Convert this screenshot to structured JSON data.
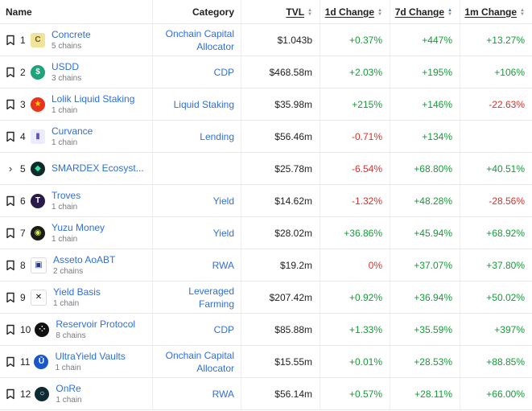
{
  "header": {
    "name": "Name",
    "category": "Category",
    "tvl": "TVL",
    "d1": "1d Change",
    "d7": "7d Change",
    "m1": "1m Change"
  },
  "rows": [
    {
      "rank": "1",
      "name": "Concrete",
      "chains": "5 chains",
      "category": "Onchain Capital Allocator",
      "tvl": "$1.043b",
      "d1": "+0.37%",
      "d7": "+447%",
      "m1": "+13.27%"
    },
    {
      "rank": "2",
      "name": "USDD",
      "chains": "3 chains",
      "category": "CDP",
      "tvl": "$468.58m",
      "d1": "+2.03%",
      "d7": "+195%",
      "m1": "+106%"
    },
    {
      "rank": "3",
      "name": "Lolik Liquid Staking",
      "chains": "1 chain",
      "category": "Liquid Staking",
      "tvl": "$35.98m",
      "d1": "+215%",
      "d7": "+146%",
      "m1": "-22.63%"
    },
    {
      "rank": "4",
      "name": "Curvance",
      "chains": "1 chain",
      "category": "Lending",
      "tvl": "$56.46m",
      "d1": "-0.71%",
      "d7": "+134%",
      "m1": ""
    },
    {
      "rank": "5",
      "name": "SMARDEX Ecosyst...",
      "chains": "",
      "category": "",
      "tvl": "$25.78m",
      "d1": "-6.54%",
      "d7": "+68.80%",
      "m1": "+40.51%"
    },
    {
      "rank": "6",
      "name": "Troves",
      "chains": "1 chain",
      "category": "Yield",
      "tvl": "$14.62m",
      "d1": "-1.32%",
      "d7": "+48.28%",
      "m1": "-28.56%"
    },
    {
      "rank": "7",
      "name": "Yuzu Money",
      "chains": "1 chain",
      "category": "Yield",
      "tvl": "$28.02m",
      "d1": "+36.86%",
      "d7": "+45.94%",
      "m1": "+68.92%"
    },
    {
      "rank": "8",
      "name": "Asseto AoABT",
      "chains": "2 chains",
      "category": "RWA",
      "tvl": "$19.2m",
      "d1": "0%",
      "d7": "+37.07%",
      "m1": "+37.80%"
    },
    {
      "rank": "9",
      "name": "Yield Basis",
      "chains": "1 chain",
      "category": "Leveraged Farming",
      "tvl": "$207.42m",
      "d1": "+0.92%",
      "d7": "+36.94%",
      "m1": "+50.02%"
    },
    {
      "rank": "10",
      "name": "Reservoir Protocol",
      "chains": "8 chains",
      "category": "CDP",
      "tvl": "$85.88m",
      "d1": "+1.33%",
      "d7": "+35.59%",
      "m1": "+397%"
    },
    {
      "rank": "11",
      "name": "UltraYield Vaults",
      "chains": "1 chain",
      "category": "Onchain Capital Allocator",
      "tvl": "$15.55m",
      "d1": "+0.01%",
      "d7": "+28.53%",
      "m1": "+88.85%"
    },
    {
      "rank": "12",
      "name": "OnRe",
      "chains": "1 chain",
      "category": "RWA",
      "tvl": "$56.14m",
      "d1": "+0.57%",
      "d7": "+28.11%",
      "m1": "+66.00%"
    }
  ],
  "logos": [
    {
      "icon": "concrete-logo-icon",
      "bg": "#f0e39a",
      "fg": "#6b5a10",
      "glyph": "C",
      "shape": "square"
    },
    {
      "icon": "usdd-logo-icon",
      "bg": "#1fa37a",
      "fg": "#ffffff",
      "glyph": "$",
      "shape": "circle"
    },
    {
      "icon": "lolik-logo-icon",
      "bg": "#e8341d",
      "fg": "#ffd400",
      "glyph": "★",
      "shape": "circle"
    },
    {
      "icon": "curvance-logo-icon",
      "bg": "#ecebff",
      "fg": "#5a50c8",
      "glyph": "▮",
      "shape": "square"
    },
    {
      "icon": "smardex-logo-icon",
      "bg": "#0f2a2a",
      "fg": "#2ee6a0",
      "glyph": "◆",
      "shape": "circle"
    },
    {
      "icon": "troves-logo-icon",
      "bg": "#2a1a4a",
      "fg": "#ffffff",
      "glyph": "T",
      "shape": "circle"
    },
    {
      "icon": "yuzu-logo-icon",
      "bg": "#1b1b1b",
      "fg": "#c8f03c",
      "glyph": "◉",
      "shape": "circle"
    },
    {
      "icon": "asseto-logo-icon",
      "bg": "#ffffff",
      "fg": "#1d3b8f",
      "glyph": "▣",
      "shape": "square"
    },
    {
      "icon": "yield-basis-logo-icon",
      "bg": "#ffffff",
      "fg": "#111111",
      "glyph": "✕",
      "shape": "square"
    },
    {
      "icon": "reservoir-logo-icon",
      "bg": "#111111",
      "fg": "#ffffff",
      "glyph": "⁘",
      "shape": "circle"
    },
    {
      "icon": "ultrayield-logo-icon",
      "bg": "#1a56c8",
      "fg": "#ffffff",
      "glyph": "Ū",
      "shape": "circle"
    },
    {
      "icon": "onre-logo-icon",
      "bg": "#0c2b33",
      "fg": "#ffffff",
      "glyph": "○",
      "shape": "circle"
    }
  ],
  "colors": {
    "positive": "#169b3a",
    "negative": "#d9312b",
    "link": "#2f6fdc"
  }
}
